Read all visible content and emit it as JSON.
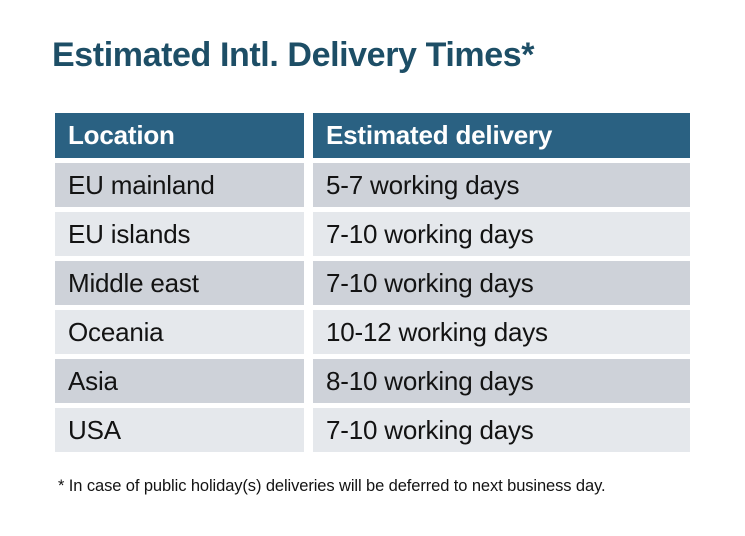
{
  "title": "Estimated Intl. Delivery Times*",
  "table": {
    "headers": {
      "location": "Location",
      "delivery": "Estimated delivery"
    },
    "rows": [
      {
        "location": "EU mainland",
        "delivery": "5-7 working days"
      },
      {
        "location": "EU islands",
        "delivery": "7-10 working days"
      },
      {
        "location": "Middle east",
        "delivery": "7-10 working days"
      },
      {
        "location": "Oceania",
        "delivery": "10-12 working days"
      },
      {
        "location": "Asia",
        "delivery": "8-10 working days"
      },
      {
        "location": "USA",
        "delivery": "7-10 working days"
      }
    ]
  },
  "footnote": "* In case of public holiday(s) deliveries will be deferred to next business day.",
  "chart_data": {
    "type": "table",
    "title": "Estimated Intl. Delivery Times*",
    "columns": [
      "Location",
      "Estimated delivery"
    ],
    "rows": [
      [
        "EU mainland",
        "5-7 working days"
      ],
      [
        "EU islands",
        "7-10 working days"
      ],
      [
        "Middle east",
        "7-10 working days"
      ],
      [
        "Oceania",
        "10-12 working days"
      ],
      [
        "Asia",
        "8-10 working days"
      ],
      [
        "USA",
        "7-10 working days"
      ]
    ],
    "footnote": "* In case of public holiday(s) deliveries will be deferred to next business day.",
    "layout_hints": {
      "header_style": "bold white on teal",
      "row_striping": "odd rows darker gray, even rows lighter gray",
      "grid": "white gutters between all cells"
    }
  },
  "colors": {
    "page_bg": "#ffffff",
    "title_text": "#1d4e66",
    "header_bg": "#2a6182",
    "header_text": "#ffffff",
    "row_odd_bg": "#ced2d9",
    "row_even_bg": "#e5e8ec",
    "cell_text": "#131313"
  }
}
